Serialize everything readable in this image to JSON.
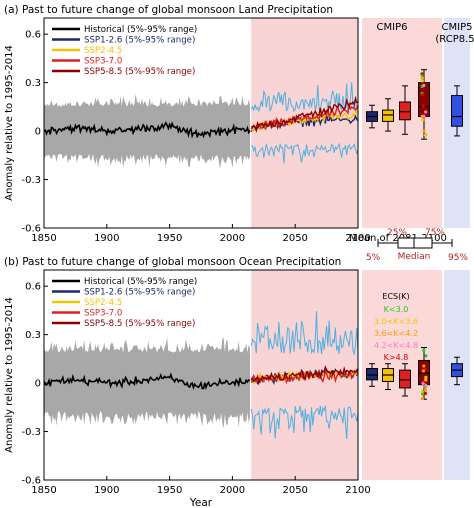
{
  "chart_data": [
    {
      "type": "line",
      "title": "(a) Past to future change of global monsoon Land Precipitation",
      "ylabel": "Anomaly relative to 1995-2014",
      "xlabel": "",
      "xlim": [
        1850,
        2100
      ],
      "ylim": [
        -0.6,
        0.7
      ],
      "xticks": [
        "1850",
        "1900",
        "1950",
        "2000",
        "2050",
        "2100"
      ],
      "yticks": [
        "0.6",
        "0.3",
        "0",
        "-0.3",
        "-0.6"
      ],
      "grid": false,
      "legend_position": "top-left",
      "legend": [
        {
          "label": "Historical (5%-95% range)",
          "color": "#000000"
        },
        {
          "label": "SSP1-2.6 (5%-95% range)",
          "color": "#1a2a6c"
        },
        {
          "label": "SSP2-4.5",
          "color": "#f5c400"
        },
        {
          "label": "SSP3-7.0",
          "color": "#e02020"
        },
        {
          "label": "SSP5-8.5 (5%-95% range)",
          "color": "#8b0000"
        }
      ],
      "series": [
        {
          "name": "Historical (5%-95% range)",
          "x": [
            1850,
            1870,
            1890,
            1910,
            1930,
            1950,
            1970,
            1990,
            2014
          ],
          "y": [
            0.0,
            0.02,
            0.01,
            0.0,
            0.02,
            0.03,
            -0.02,
            0.0,
            0.01
          ],
          "range": [
            -0.2,
            0.2
          ]
        },
        {
          "name": "SSP1-2.6 (5%-95% range)",
          "x": [
            2015,
            2040,
            2060,
            2080,
            2100
          ],
          "y": [
            0.02,
            0.05,
            0.06,
            0.07,
            0.07
          ],
          "range": [
            -0.2,
            0.3
          ]
        },
        {
          "name": "SSP2-4.5",
          "x": [
            2015,
            2040,
            2060,
            2080,
            2100
          ],
          "y": [
            0.02,
            0.05,
            0.07,
            0.09,
            0.1
          ]
        },
        {
          "name": "SSP3-7.0",
          "x": [
            2015,
            2040,
            2060,
            2080,
            2100
          ],
          "y": [
            0.02,
            0.05,
            0.08,
            0.11,
            0.14
          ]
        },
        {
          "name": "SSP5-8.5 (5%-95% range)",
          "x": [
            2015,
            2040,
            2060,
            2080,
            2100
          ],
          "y": [
            0.02,
            0.06,
            0.1,
            0.14,
            0.18
          ],
          "range": [
            -0.2,
            0.6
          ]
        }
      ],
      "boxplot_panel": {
        "label_cmip6": "CMIP6",
        "label_cmip5": "CMIP5\n(RCP8.5)",
        "footer": "Mean of 2081-2100",
        "boxes": [
          {
            "name": "SSP1-2.6",
            "color": "#1a2a6c",
            "whisker_low": 0.02,
            "q1": 0.06,
            "median": 0.09,
            "q3": 0.12,
            "whisker_high": 0.16
          },
          {
            "name": "SSP2-4.5",
            "color": "#f5c400",
            "whisker_low": 0.0,
            "q1": 0.06,
            "median": 0.1,
            "q3": 0.13,
            "whisker_high": 0.2
          },
          {
            "name": "SSP3-7.0",
            "color": "#e02020",
            "whisker_low": -0.02,
            "q1": 0.07,
            "median": 0.12,
            "q3": 0.18,
            "whisker_high": 0.28
          },
          {
            "name": "SSP5-8.5",
            "color": "#8b0000",
            "whisker_low": -0.05,
            "q1": 0.09,
            "median": 0.15,
            "q3": 0.3,
            "whisker_high": 0.38
          },
          {
            "name": "CMIP5 RCP8.5",
            "color": "#3050e0",
            "whisker_low": -0.03,
            "q1": 0.03,
            "median": 0.09,
            "q3": 0.22,
            "whisker_high": 0.28
          }
        ]
      }
    },
    {
      "type": "line",
      "title": "(b) Past to future change of global monsoon Ocean Precipitation",
      "ylabel": "Anomaly relative to 1995-2014",
      "xlabel": "Year",
      "xlim": [
        1850,
        2100
      ],
      "ylim": [
        -0.6,
        0.7
      ],
      "xticks": [
        "1850",
        "1900",
        "1950",
        "2000",
        "2050",
        "2100"
      ],
      "yticks": [
        "0.6",
        "0.3",
        "0",
        "-0.3",
        "-0.6"
      ],
      "grid": false,
      "legend_position": "top-left",
      "legend": [
        {
          "label": "Historical (5%-95% range)",
          "color": "#000000"
        },
        {
          "label": "SSP1-2.6 (5%-95% range)",
          "color": "#1a2a6c"
        },
        {
          "label": "SSP2-4.5",
          "color": "#f5c400"
        },
        {
          "label": "SSP3-7.0",
          "color": "#e02020"
        },
        {
          "label": "SSP5-8.5 (5%-95% range)",
          "color": "#8b0000"
        }
      ],
      "series": [
        {
          "name": "Historical (5%-95% range)",
          "x": [
            1850,
            1870,
            1890,
            1910,
            1930,
            1950,
            1970,
            1990,
            2014
          ],
          "y": [
            0.0,
            0.02,
            0.01,
            0.0,
            0.02,
            0.03,
            -0.02,
            0.0,
            0.01
          ],
          "range": [
            -0.25,
            0.25
          ]
        },
        {
          "name": "SSP1-2.6 (5%-95% range)",
          "x": [
            2015,
            2040,
            2060,
            2080,
            2100
          ],
          "y": [
            0.02,
            0.04,
            0.05,
            0.06,
            0.06
          ],
          "range": [
            -0.35,
            0.45
          ]
        },
        {
          "name": "SSP2-4.5",
          "x": [
            2015,
            2040,
            2060,
            2080,
            2100
          ],
          "y": [
            0.02,
            0.04,
            0.05,
            0.06,
            0.06
          ]
        },
        {
          "name": "SSP3-7.0",
          "x": [
            2015,
            2040,
            2060,
            2080,
            2100
          ],
          "y": [
            0.02,
            0.03,
            0.04,
            0.04,
            0.05
          ]
        },
        {
          "name": "SSP5-8.5 (5%-95% range)",
          "x": [
            2015,
            2040,
            2060,
            2080,
            2100
          ],
          "y": [
            0.02,
            0.04,
            0.06,
            0.07,
            0.08
          ],
          "range": [
            -0.35,
            0.5
          ]
        }
      ],
      "boxplot_panel": {
        "ecs_legend": {
          "title": "ECS(K)",
          "items": [
            {
              "label": "K<3.0",
              "color": "#22cc22"
            },
            {
              "label": "3.0<K<3.6",
              "color": "#f5c400"
            },
            {
              "label": "3.6<K<4.2",
              "color": "#ff9900"
            },
            {
              "label": "4.2<K<4.8",
              "color": "#ff77cc"
            },
            {
              "label": "K>4.8",
              "color": "#dd0000"
            }
          ]
        },
        "boxes": [
          {
            "name": "SSP1-2.6",
            "color": "#1a2a6c",
            "whisker_low": -0.02,
            "q1": 0.02,
            "median": 0.05,
            "q3": 0.09,
            "whisker_high": 0.12
          },
          {
            "name": "SSP2-4.5",
            "color": "#f5c400",
            "whisker_low": -0.04,
            "q1": 0.01,
            "median": 0.05,
            "q3": 0.09,
            "whisker_high": 0.12
          },
          {
            "name": "SSP3-7.0",
            "color": "#e02020",
            "whisker_low": -0.08,
            "q1": -0.03,
            "median": 0.02,
            "q3": 0.08,
            "whisker_high": 0.12
          },
          {
            "name": "SSP5-8.5",
            "color": "#8b0000",
            "whisker_low": -0.1,
            "q1": -0.01,
            "median": 0.06,
            "q3": 0.14,
            "whisker_high": 0.22
          },
          {
            "name": "CMIP5 RCP8.5",
            "color": "#3050e0",
            "whisker_low": -0.01,
            "q1": 0.04,
            "median": 0.08,
            "q3": 0.12,
            "whisker_high": 0.16
          }
        ]
      }
    }
  ],
  "boxplot_key": {
    "p5": "5%",
    "p25": "25%",
    "median": "Median",
    "p75": "75%",
    "p95": "95%"
  },
  "colors": {
    "historical_band": "#a8a8a8",
    "future_band_pink": "#f7cccc",
    "future_band_blue": "#4fb0e0",
    "cmip6_panel_bg": "#fbd9d9",
    "cmip5_panel_bg": "#e0e3f7"
  }
}
